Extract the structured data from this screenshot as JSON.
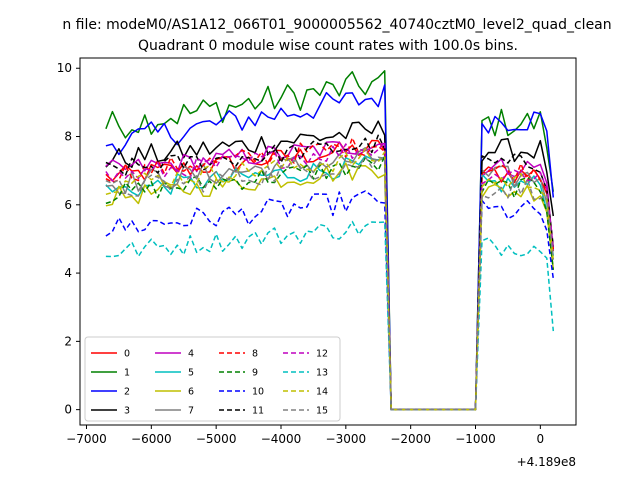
{
  "chart_data": {
    "type": "line",
    "suptitle": "n file: modeM0/AS1A12_066T01_9000005562_40740cztM0_level2_quad_clean",
    "title": "Quadrant 0 module wise count rates with 100.0s bins.",
    "xlabel": "",
    "ylabel": "",
    "offset_text": "+4.189e8",
    "xlim": [
      -7100,
      550
    ],
    "ylim": [
      -0.45,
      10.3
    ],
    "xticks": [
      -7000,
      -6000,
      -5000,
      -4000,
      -3000,
      -2000,
      -1000,
      0
    ],
    "xtick_labels": [
      "−7000",
      "−6000",
      "−5000",
      "−4000",
      "−3000",
      "−2000",
      "−1000",
      "0"
    ],
    "yticks": [
      0,
      2,
      4,
      6,
      8,
      10
    ],
    "ytick_labels": [
      "0",
      "2",
      "4",
      "6",
      "8",
      "10"
    ],
    "legend": {
      "placement": "lower-left",
      "ncol": 4
    },
    "x_segments": [
      {
        "start": -6700,
        "end": -2400,
        "step": 100
      },
      {
        "start": -2300,
        "end": -1000,
        "step": 100
      },
      {
        "start": -900,
        "end": 200,
        "step": 100
      }
    ],
    "series": [
      {
        "name": "0",
        "color": "#ff0000",
        "dash": false,
        "base": 6.8,
        "ramp": 0.9,
        "noise": 0.3,
        "post": 6.9
      },
      {
        "name": "1",
        "color": "#008000",
        "dash": false,
        "base": 8.3,
        "ramp": 1.3,
        "noise": 0.45,
        "post": 8.4
      },
      {
        "name": "2",
        "color": "#0000ff",
        "dash": false,
        "base": 7.8,
        "ramp": 1.4,
        "noise": 0.4,
        "post": 8.5
      },
      {
        "name": "3",
        "color": "#000000",
        "dash": false,
        "base": 7.3,
        "ramp": 0.9,
        "noise": 0.35,
        "post": 7.6
      },
      {
        "name": "4",
        "color": "#bf00bf",
        "dash": false,
        "base": 7.0,
        "ramp": 0.8,
        "noise": 0.3,
        "post": 7.1
      },
      {
        "name": "5",
        "color": "#00bfbf",
        "dash": false,
        "base": 6.4,
        "ramp": 0.8,
        "noise": 0.3,
        "post": 6.6
      },
      {
        "name": "6",
        "color": "#bfbf00",
        "dash": false,
        "base": 6.2,
        "ramp": 0.9,
        "noise": 0.3,
        "post": 6.4
      },
      {
        "name": "7",
        "color": "#808080",
        "dash": false,
        "base": 6.6,
        "ramp": 0.8,
        "noise": 0.35,
        "post": 6.8
      },
      {
        "name": "8",
        "color": "#ff0000",
        "dash": true,
        "base": 6.9,
        "ramp": 0.9,
        "noise": 0.3,
        "post": 7.0
      },
      {
        "name": "9",
        "color": "#008000",
        "dash": true,
        "base": 6.3,
        "ramp": 0.9,
        "noise": 0.3,
        "post": 6.5
      },
      {
        "name": "10",
        "color": "#0000ff",
        "dash": true,
        "base": 5.3,
        "ramp": 0.9,
        "noise": 0.35,
        "post": 5.8
      },
      {
        "name": "11",
        "color": "#000000",
        "dash": true,
        "base": 7.0,
        "ramp": 0.8,
        "noise": 0.3,
        "post": 7.2
      },
      {
        "name": "12",
        "color": "#bf00bf",
        "dash": true,
        "base": 6.8,
        "ramp": 0.9,
        "noise": 0.3,
        "post": 6.9
      },
      {
        "name": "13",
        "color": "#00bfbf",
        "dash": true,
        "base": 4.6,
        "ramp": 0.8,
        "noise": 0.3,
        "post": 4.8
      },
      {
        "name": "14",
        "color": "#bfbf00",
        "dash": true,
        "base": 6.6,
        "ramp": 0.8,
        "noise": 0.3,
        "post": 6.7
      },
      {
        "name": "15",
        "color": "#808080",
        "dash": true,
        "base": 6.4,
        "ramp": 0.9,
        "noise": 0.35,
        "post": 6.5
      }
    ]
  }
}
